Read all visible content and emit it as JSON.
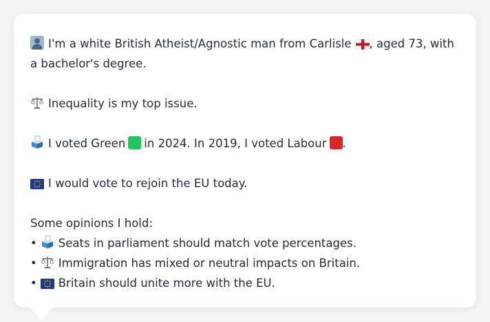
{
  "profile": {
    "intro": {
      "text_before_flag": "I'm a white British Atheist/Agnostic man from Carlisle",
      "text_after_flag": ", aged 73, with a bachelor's degree."
    },
    "top_issue": "Inequality is my top issue.",
    "vote": {
      "part1": "I voted Green",
      "part2": "in 2024. In 2019, I voted Labour",
      "part3": "."
    },
    "eu": "I would vote to rejoin the EU today.",
    "opinions_heading": "Some opinions I hold:",
    "opinions": [
      "Seats in parliament should match vote percentages.",
      "Immigration has mixed or neutral impacts on Britain.",
      "Britain should unite more with the EU."
    ],
    "bullet_char": "•"
  },
  "colors": {
    "green_square": "#22c55e",
    "labour_square": "#dc2626",
    "bubble_bg": "#ffffff",
    "page_bg": "#f3f4f6"
  },
  "icons": {
    "person": "person-silhouette-icon",
    "flag": "england-flag-icon",
    "scales": "balance-scale-icon",
    "ballot": "ballot-box-icon",
    "eu": "eu-flag-icon"
  }
}
